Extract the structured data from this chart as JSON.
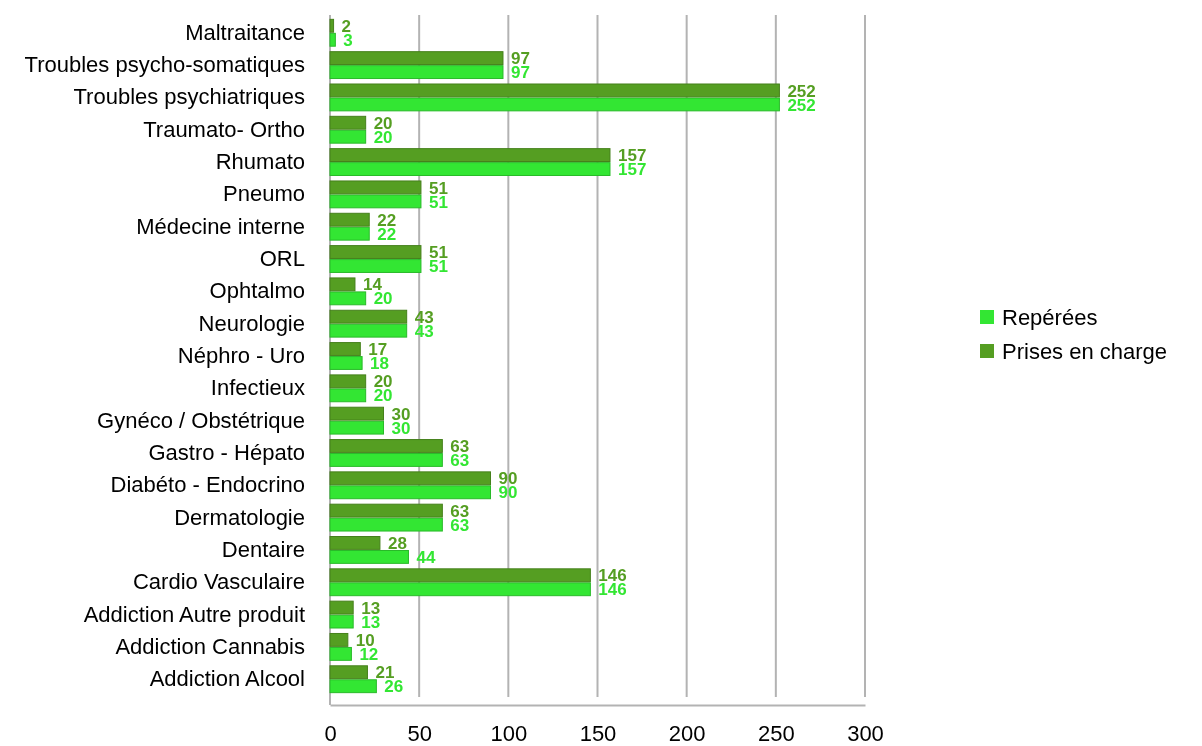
{
  "chart_data": {
    "type": "bar",
    "orientation": "horizontal",
    "categories": [
      "Maltraitance",
      "Troubles psycho-somatiques",
      "Troubles psychiatriques",
      "Traumato- Ortho",
      "Rhumato",
      "Pneumo",
      "Médecine interne",
      "ORL",
      "Ophtalmo",
      "Neurologie",
      "Néphro - Uro",
      "Infectieux",
      "Gynéco / Obstétrique",
      "Gastro - Hépato",
      "Diabéto - Endocrino",
      "Dermatologie",
      "Dentaire",
      "Cardio Vasculaire",
      "Addiction Autre produit",
      "Addiction Cannabis",
      "Addiction Alcool"
    ],
    "series": [
      {
        "name": "Repérées",
        "color": "#33e633",
        "values": [
          3,
          97,
          252,
          20,
          157,
          51,
          22,
          51,
          20,
          43,
          18,
          20,
          30,
          63,
          90,
          63,
          44,
          146,
          13,
          12,
          26
        ]
      },
      {
        "name": "Prises en charge",
        "color": "#559e22",
        "values": [
          2,
          97,
          252,
          20,
          157,
          51,
          22,
          51,
          14,
          43,
          17,
          20,
          30,
          63,
          90,
          63,
          28,
          146,
          13,
          10,
          21
        ]
      }
    ],
    "xlim": [
      0,
      300
    ],
    "xticks": [
      0,
      50,
      100,
      150,
      200,
      250,
      300
    ],
    "grid": "x",
    "legend": "right",
    "data_labels": true
  }
}
